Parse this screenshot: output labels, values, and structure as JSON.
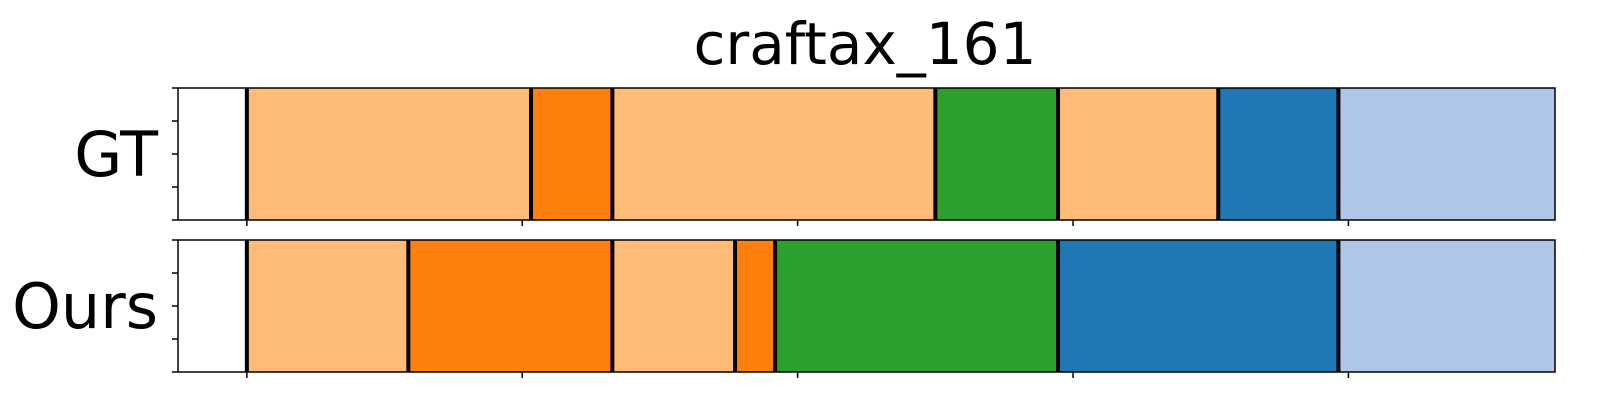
{
  "chart_data": {
    "type": "segment-timeline",
    "title": "craftax_161",
    "xlim": [
      0,
      1100
    ],
    "rows": [
      {
        "label": "GT",
        "segments": [
          {
            "start": 0,
            "end": 55,
            "color": "#ffffff"
          },
          {
            "start": 55,
            "end": 282,
            "color": "#ffbb78"
          },
          {
            "start": 282,
            "end": 347,
            "color": "#ff7f0e"
          },
          {
            "start": 347,
            "end": 605,
            "color": "#ffbb78"
          },
          {
            "start": 605,
            "end": 703,
            "color": "#2ca02c"
          },
          {
            "start": 703,
            "end": 831,
            "color": "#ffbb78"
          },
          {
            "start": 831,
            "end": 927,
            "color": "#1f77b4"
          },
          {
            "start": 927,
            "end": 1155,
            "color": "#aec7e8"
          },
          {
            "start": 1155,
            "end": 1100,
            "color": "#ffffff"
          }
        ]
      },
      {
        "label": "Ours",
        "segments": [
          {
            "start": 0,
            "end": 55,
            "color": "#ffffff"
          },
          {
            "start": 55,
            "end": 184,
            "color": "#ffbb78"
          },
          {
            "start": 184,
            "end": 347,
            "color": "#ff7f0e"
          },
          {
            "start": 347,
            "end": 445,
            "color": "#ffbb78"
          },
          {
            "start": 445,
            "end": 477,
            "color": "#ff7f0e"
          },
          {
            "start": 477,
            "end": 703,
            "color": "#2ca02c"
          },
          {
            "start": 703,
            "end": 927,
            "color": "#1f77b4"
          },
          {
            "start": 927,
            "end": 1155,
            "color": "#aec7e8"
          },
          {
            "start": 1155,
            "end": 1100,
            "color": "#ffffff"
          }
        ]
      }
    ],
    "x_ticks": [
      55,
      275,
      495,
      715,
      935,
      1155
    ],
    "y_ticks_per_row": 5,
    "grid": false,
    "tick_labels_visible": false
  }
}
